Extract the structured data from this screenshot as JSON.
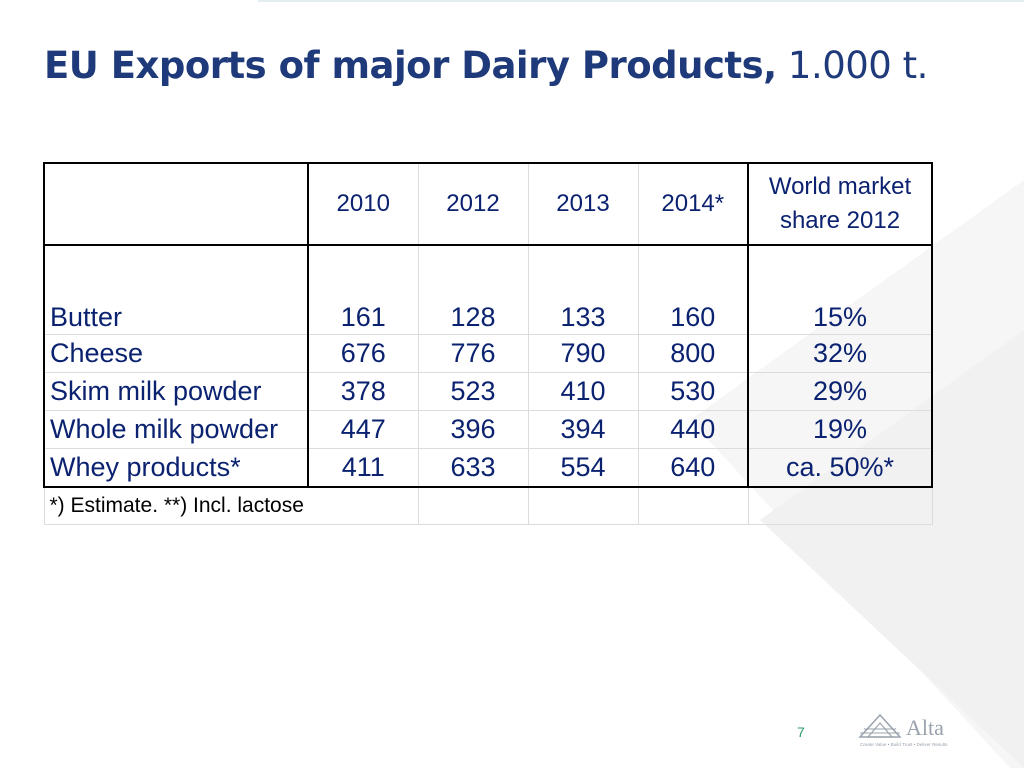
{
  "slide": {
    "title_bold": "EU Exports of major Dairy Products,",
    "title_normal": " 1.000 t.",
    "page_number": "7",
    "logo_text": "Alta",
    "logo_tagline": "Create Value • Build Trust • Deliver Results"
  },
  "table": {
    "headers": [
      "",
      "2010",
      "2012",
      "2013",
      "2014*",
      "World market share 2012"
    ],
    "header_share_line1": "World market",
    "header_share_line2": "share 2012",
    "rows": [
      {
        "product": "Butter",
        "y2010": "161",
        "y2012": "128",
        "y2013": "133",
        "y2014": "160",
        "share": "15%"
      },
      {
        "product": "Cheese",
        "y2010": "676",
        "y2012": "776",
        "y2013": "790",
        "y2014": "800",
        "share": "32%"
      },
      {
        "product": "Skim milk powder",
        "y2010": "378",
        "y2012": "523",
        "y2013": "410",
        "y2014": "530",
        "share": "29%"
      },
      {
        "product": "Whole milk powder",
        "y2010": "447",
        "y2012": "396",
        "y2013": "394",
        "y2014": "440",
        "share": "19%"
      },
      {
        "product": "Whey products*",
        "y2010": "411",
        "y2012": "633",
        "y2013": "554",
        "y2014": "640",
        "share": "ca. 50%*"
      }
    ],
    "footnote": "*) Estimate. **) Incl. lactose"
  }
}
